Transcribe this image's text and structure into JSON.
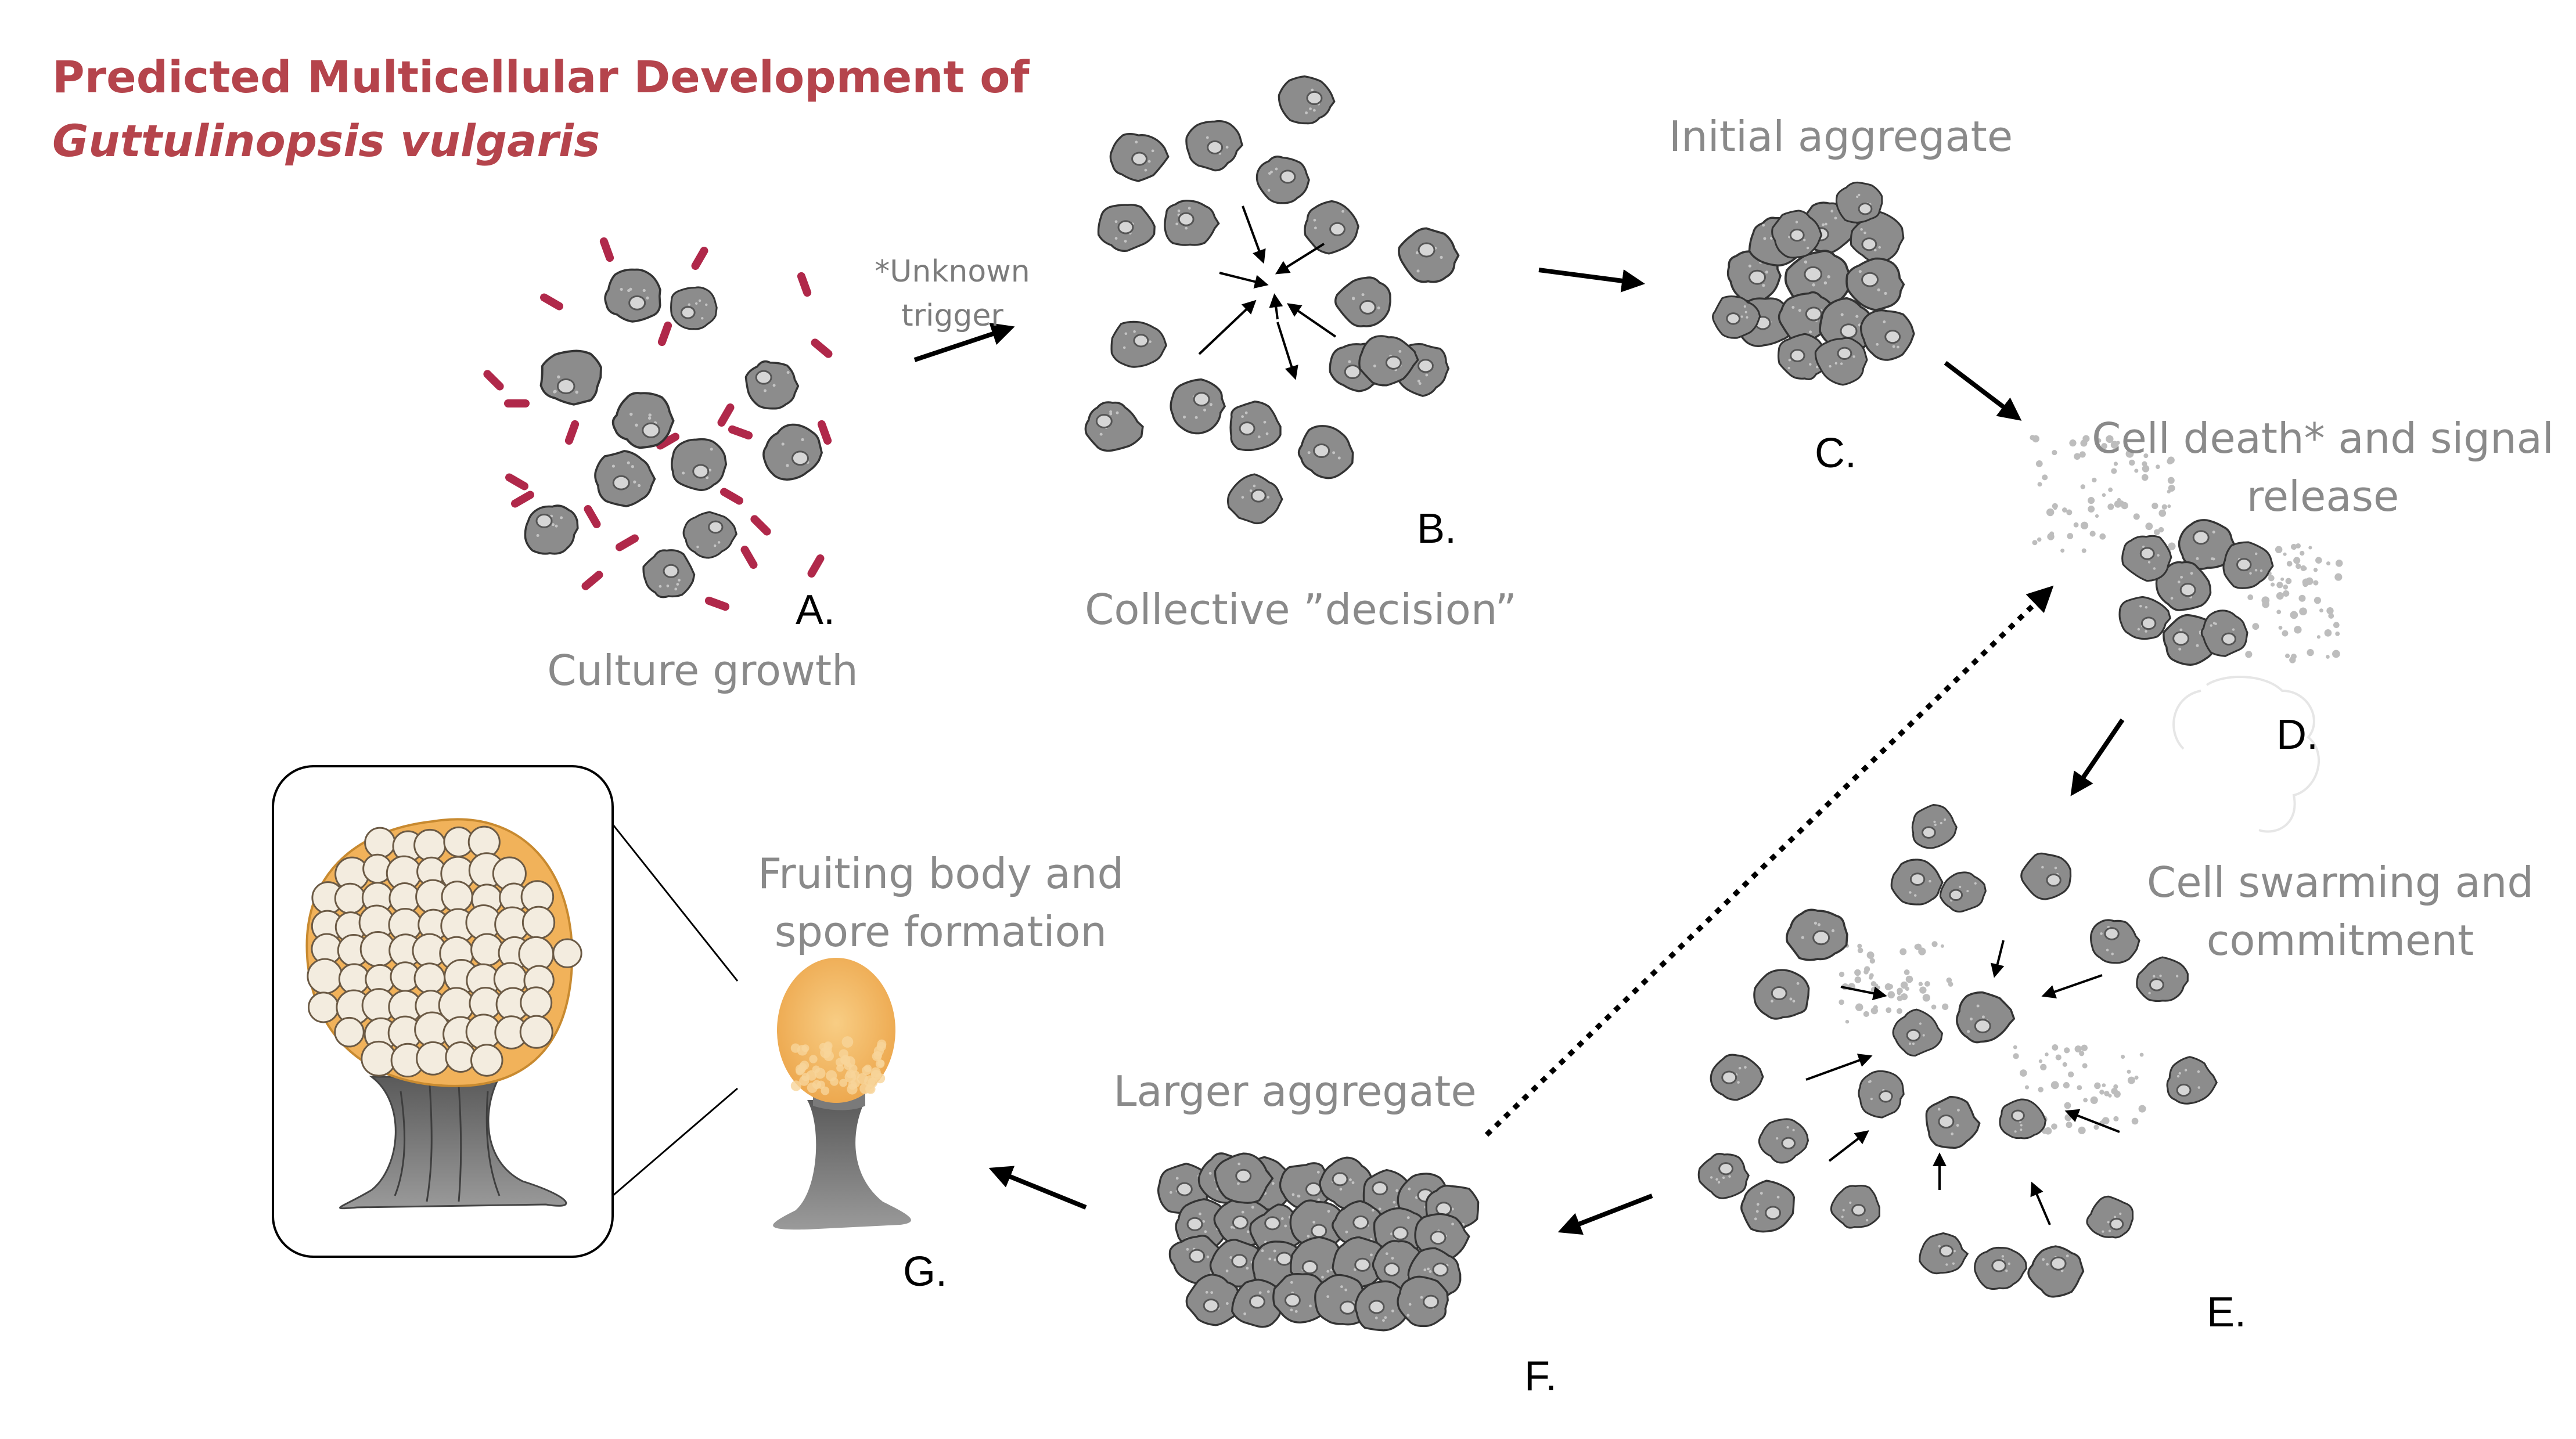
{
  "title": {
    "line1": "Predicted Multicellular Development of",
    "line2": "Guttulinopsis vulgaris"
  },
  "colors": {
    "title": "#b5444c",
    "cell_fill": "#8c8c8c",
    "cell_stroke": "#333333",
    "bacteria": "#b0284a",
    "spore_head": "#f3b860",
    "stalk": "#6e6e6e",
    "caption": "#8a8a8a"
  },
  "stages": {
    "a": {
      "letter": "A.",
      "caption": "Culture growth"
    },
    "b": {
      "letter": "B.",
      "caption": "Collective ”decision”"
    },
    "c": {
      "letter": "C.",
      "caption": "Initial aggregate"
    },
    "d": {
      "letter": "D.",
      "caption_line1": "Cell death* and signal",
      "caption_line2": "release"
    },
    "e": {
      "letter": "E.",
      "caption_line1": "Cell swarming and",
      "caption_line2": "commitment"
    },
    "f": {
      "letter": "F.",
      "caption": "Larger aggregate"
    },
    "g": {
      "letter": "G.",
      "caption_line1": "Fruiting body and",
      "caption_line2": "spore formation"
    }
  },
  "trigger": {
    "line1": "*Unknown",
    "line2": "trigger"
  },
  "icons": [
    "amoeba-cell-icon",
    "bacterium-icon",
    "arrow-icon",
    "dotted-feedback-arrow-icon",
    "fruiting-body-icon",
    "magnified-inset-icon"
  ]
}
